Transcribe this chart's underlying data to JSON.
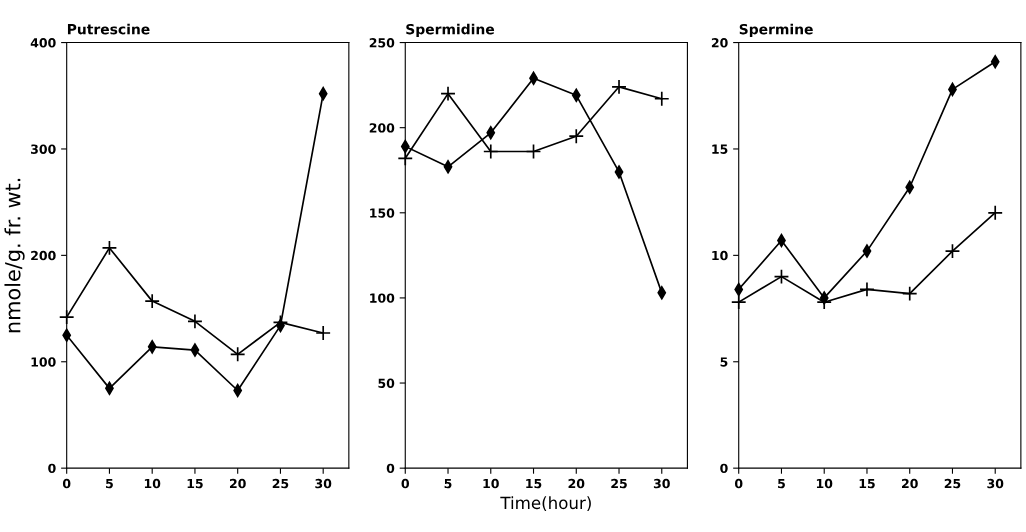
{
  "chart_data": [
    {
      "type": "line",
      "title": "Putrescine",
      "ylabel": "nmole/g. fr. wt.",
      "x": [
        0,
        5,
        10,
        15,
        20,
        25,
        30
      ],
      "xlim": [
        0,
        33
      ],
      "xticks": [
        0,
        5,
        10,
        15,
        20,
        25,
        30
      ],
      "ylim": [
        0,
        400
      ],
      "yticks": [
        0,
        100,
        200,
        300,
        400
      ],
      "grid": false,
      "series": [
        {
          "color": "#000000",
          "marker": "cross",
          "values": [
            142,
            207,
            157,
            138,
            107,
            137,
            127
          ]
        },
        {
          "color": "#000000",
          "marker": "diamond",
          "values": [
            125,
            75,
            114,
            111,
            73,
            134,
            352
          ]
        }
      ]
    },
    {
      "type": "line",
      "title": "Spermidine",
      "xlabel": "Time(hour)",
      "x": [
        0,
        5,
        10,
        15,
        20,
        25,
        30
      ],
      "xlim": [
        0,
        33
      ],
      "xticks": [
        0,
        5,
        10,
        15,
        20,
        25,
        30
      ],
      "ylim": [
        0,
        250
      ],
      "yticks": [
        0,
        50,
        100,
        150,
        200,
        250
      ],
      "grid": false,
      "series": [
        {
          "color": "#000000",
          "marker": "cross",
          "values": [
            182,
            220,
            186,
            186,
            195,
            224,
            217
          ]
        },
        {
          "color": "#000000",
          "marker": "diamond",
          "values": [
            189,
            177,
            197,
            229,
            219,
            174,
            103
          ]
        }
      ]
    },
    {
      "type": "line",
      "title": "Spermine",
      "x": [
        0,
        5,
        10,
        15,
        20,
        25,
        30
      ],
      "xlim": [
        0,
        33
      ],
      "xticks": [
        0,
        5,
        10,
        15,
        20,
        25,
        30
      ],
      "ylim": [
        0,
        20
      ],
      "yticks": [
        0,
        5,
        10,
        15,
        20
      ],
      "grid": false,
      "series": [
        {
          "color": "#000000",
          "marker": "cross",
          "values": [
            7.8,
            9.0,
            7.8,
            8.4,
            8.2,
            10.2,
            12.0
          ]
        },
        {
          "color": "#000000",
          "marker": "diamond",
          "values": [
            8.4,
            10.7,
            8.0,
            10.2,
            13.2,
            17.8,
            19.1
          ]
        }
      ]
    }
  ]
}
